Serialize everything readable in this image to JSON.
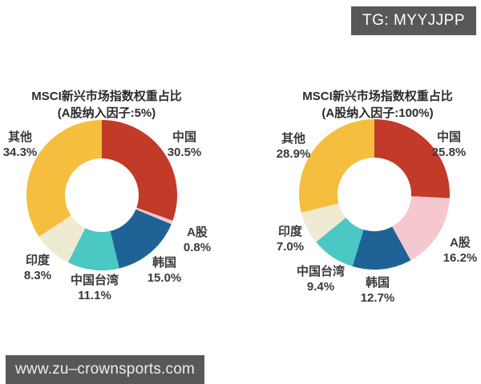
{
  "badges": {
    "top_right": "TG: MYYJJPP",
    "bottom_left": "www.zu–crownsports.com"
  },
  "colors": {
    "badge_background": "#58585a",
    "badge_text": "#ffffff",
    "chart_text": "#3a3a3a"
  },
  "chart_data": [
    {
      "type": "pie",
      "subtype": "donut",
      "title": "MSCI新兴市场指数权重占比",
      "subtitle": "(A股纳入因子:5%)",
      "start_angle_deg": 0,
      "direction": "clockwise",
      "inner_radius_ratio": 0.49,
      "segments": [
        {
          "label": "中国",
          "value": 30.5,
          "value_text": "30.5%",
          "color": "#c23a28"
        },
        {
          "label": "A股",
          "value": 0.8,
          "value_text": "0.8%",
          "color": "#f5c7cf"
        },
        {
          "label": "韩国",
          "value": 15.0,
          "value_text": "15.0%",
          "color": "#1f6396"
        },
        {
          "label": "中国台湾",
          "value": 11.1,
          "value_text": "11.1%",
          "color": "#4bc7c4"
        },
        {
          "label": "印度",
          "value": 8.3,
          "value_text": "8.3%",
          "color": "#efebd3"
        },
        {
          "label": "其他",
          "value": 34.3,
          "value_text": "34.3%",
          "color": "#f5be3e"
        }
      ]
    },
    {
      "type": "pie",
      "subtype": "donut",
      "title": "MSCI新兴市场指数权重占比",
      "subtitle": "(A股纳入因子:100%)",
      "start_angle_deg": 0,
      "direction": "clockwise",
      "inner_radius_ratio": 0.49,
      "segments": [
        {
          "label": "中国",
          "value": 25.8,
          "value_text": "25.8%",
          "color": "#c23a28"
        },
        {
          "label": "A股",
          "value": 16.2,
          "value_text": "16.2%",
          "color": "#f5c7cf"
        },
        {
          "label": "韩国",
          "value": 12.7,
          "value_text": "12.7%",
          "color": "#1f6396"
        },
        {
          "label": "中国台湾",
          "value": 9.4,
          "value_text": "9.4%",
          "color": "#4bc7c4"
        },
        {
          "label": "印度",
          "value": 7.0,
          "value_text": "7.0%",
          "color": "#efebd3"
        },
        {
          "label": "其他",
          "value": 28.9,
          "value_text": "28.9%",
          "color": "#f5be3e"
        }
      ]
    }
  ]
}
